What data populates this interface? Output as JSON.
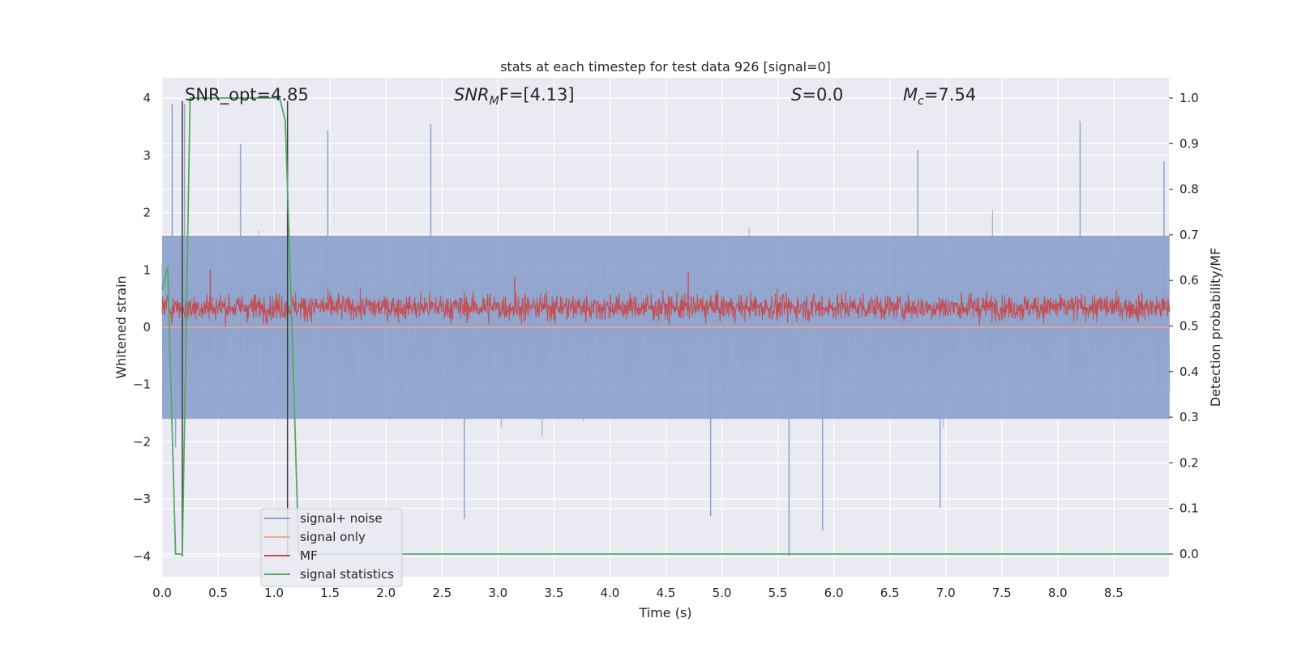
{
  "chart_data": {
    "type": "line",
    "title": "stats at each timestep for test data 926 [signal=0]",
    "xlabel": "Time (s)",
    "ylabel_left": "Whitened strain",
    "ylabel_right": "Detection probability/MF",
    "xlim": [
      0.0,
      9.0
    ],
    "ylim_left": [
      -4.35,
      4.35
    ],
    "ylim_right": [
      -0.045,
      1.045
    ],
    "x_ticks": [
      "0.0",
      "0.5",
      "1.0",
      "1.5",
      "2.0",
      "2.5",
      "3.0",
      "3.5",
      "4.0",
      "4.5",
      "5.0",
      "5.5",
      "6.0",
      "6.5",
      "7.0",
      "7.5",
      "8.0",
      "8.5"
    ],
    "y_left_ticks": [
      "4",
      "3",
      "2",
      "1",
      "0",
      "−1",
      "−2",
      "−3",
      "−4"
    ],
    "y_right_ticks": [
      "1.0",
      "0.9",
      "0.8",
      "0.7",
      "0.6",
      "0.5",
      "0.4",
      "0.3",
      "0.2",
      "0.1",
      "0.0"
    ],
    "annotations": {
      "snr_opt": "SNR_opt=4.85",
      "snr_mf_main": "SNR",
      "snr_mf_sub": "M",
      "snr_mf_rest": "F=[4.13]",
      "s_main": "S",
      "s_rest": "=0.0",
      "mc_main": "M",
      "mc_sub": "c",
      "mc_rest": "=7.54"
    },
    "legend": {
      "position": "lower-left",
      "entries": [
        {
          "label": "signal+ noise",
          "color": "#8fa3cc"
        },
        {
          "label": "signal only",
          "color": "#f1a98b"
        },
        {
          "label": "MF",
          "color": "#c44e52"
        },
        {
          "label": "signal statistics",
          "color": "#55a868"
        }
      ]
    },
    "series": [
      {
        "name": "signal+ noise",
        "axis": "left",
        "color": "#8fa3cc",
        "description_band": [
          -1.6,
          1.6
        ],
        "peaks": [
          {
            "x": 0.09,
            "y": 3.9
          },
          {
            "x": 0.2,
            "y": 3.9
          },
          {
            "x": 0.7,
            "y": 3.2
          },
          {
            "x": 1.48,
            "y": 3.45
          },
          {
            "x": 2.4,
            "y": 3.55
          },
          {
            "x": 6.75,
            "y": 3.1
          },
          {
            "x": 8.2,
            "y": 3.6
          },
          {
            "x": 8.95,
            "y": 2.9
          },
          {
            "x": 2.7,
            "y": -3.35
          },
          {
            "x": 4.9,
            "y": -3.3
          },
          {
            "x": 5.6,
            "y": -4.0
          },
          {
            "x": 5.9,
            "y": -3.55
          },
          {
            "x": 6.95,
            "y": -3.15
          },
          {
            "x": 0.12,
            "y": -2.1
          }
        ]
      },
      {
        "name": "signal only",
        "axis": "left",
        "color": "#f1a98b",
        "x": [
          0.0,
          9.0
        ],
        "y": [
          0.0,
          0.0
        ]
      },
      {
        "name": "MF",
        "axis": "left",
        "color": "#c44e52",
        "description_band": [
          0.0,
          0.75
        ],
        "peaks": [
          {
            "x": 0.43,
            "y": 1.0
          },
          {
            "x": 4.7,
            "y": 0.97
          },
          {
            "x": 3.15,
            "y": 0.88
          }
        ]
      },
      {
        "name": "signal statistics",
        "axis": "right",
        "color": "#55a868",
        "x": [
          0.0,
          0.05,
          0.12,
          0.18,
          0.25,
          1.0,
          1.05,
          1.1,
          1.16,
          1.22,
          9.0
        ],
        "y": [
          0.58,
          0.63,
          0.0,
          0.0,
          1.0,
          1.0,
          1.0,
          0.95,
          0.5,
          0.0,
          0.0
        ]
      }
    ],
    "vertical_markers": [
      {
        "x": 0.18,
        "ymin": -4.0,
        "ymax": 3.95,
        "color": "#3c3c3c"
      },
      {
        "x": 1.12,
        "ymin": -4.0,
        "ymax": 3.95,
        "color": "#3c3c3c"
      }
    ]
  }
}
